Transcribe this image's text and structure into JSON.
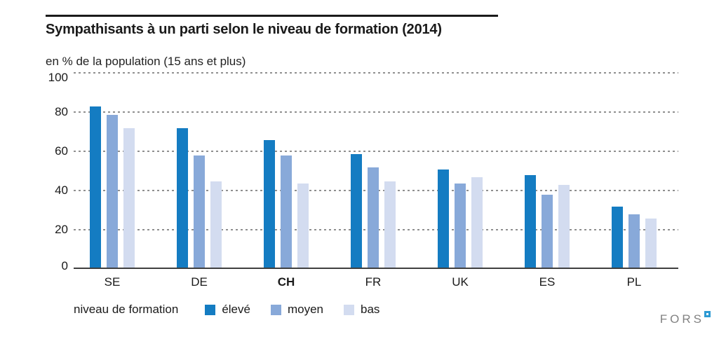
{
  "header": {
    "title": "Sympathisants à un parti selon le niveau de formation (2014)",
    "subtitle": "en % de la population (15 ans et plus)"
  },
  "chart_data": {
    "type": "bar",
    "title": "Sympathisants à un parti selon le niveau de formation (2014)",
    "subtitle": "en % de la population (15 ans et plus)",
    "unit": "% de la population",
    "categories": [
      "SE",
      "DE",
      "CH",
      "FR",
      "UK",
      "ES",
      "PL"
    ],
    "emphasized_category": "CH",
    "series": [
      {
        "name": "élevé",
        "color": "#147cc2",
        "values": [
          82,
          71,
          65,
          58,
          50,
          47,
          31
        ]
      },
      {
        "name": "moyen",
        "color": "#88a9d9",
        "values": [
          78,
          57,
          57,
          51,
          43,
          37,
          27
        ]
      },
      {
        "name": "bas",
        "color": "#d3dcf0",
        "values": [
          71,
          44,
          43,
          44,
          46,
          42,
          25
        ]
      }
    ],
    "ylim": [
      0,
      100
    ],
    "yticks": [
      0,
      20,
      40,
      60,
      80,
      100
    ],
    "grid": "horizontal-dotted",
    "gridline_color": "#8f8f8f",
    "axis_color": "#3f3f3f",
    "legend_position": "bottom"
  },
  "legend": {
    "caption": "niveau de formation",
    "items": [
      {
        "label": "élevé",
        "color": "#147cc2"
      },
      {
        "label": "moyen",
        "color": "#88a9d9"
      },
      {
        "label": "bas",
        "color": "#d3dcf0"
      }
    ]
  },
  "footer": {
    "logo_text": "FORS"
  }
}
